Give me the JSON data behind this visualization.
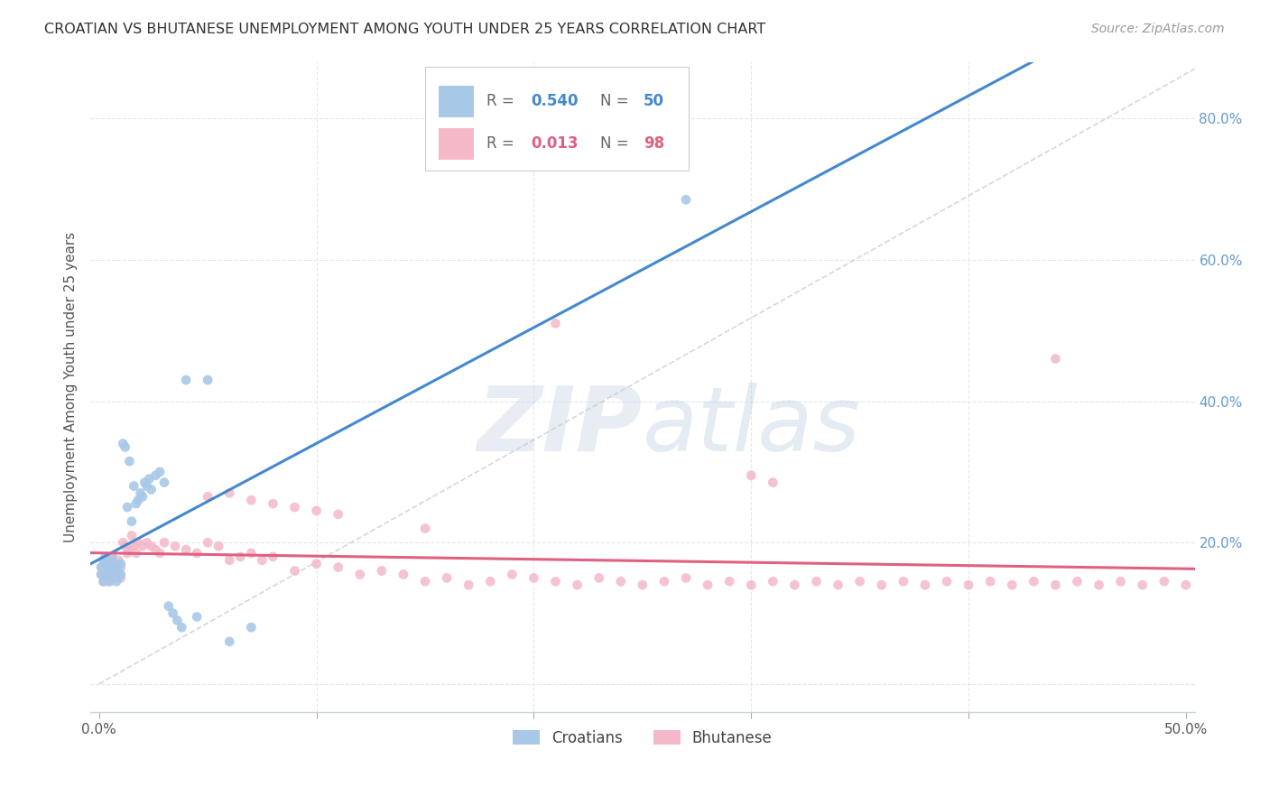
{
  "title": "CROATIAN VS BHUTANESE UNEMPLOYMENT AMONG YOUTH UNDER 25 YEARS CORRELATION CHART",
  "source": "Source: ZipAtlas.com",
  "ylabel": "Unemployment Among Youth under 25 years",
  "xlim": [
    -0.004,
    0.504
  ],
  "ylim": [
    -0.04,
    0.88
  ],
  "x_ticks": [
    0.0,
    0.1,
    0.2,
    0.3,
    0.4,
    0.5
  ],
  "x_tick_labels": [
    "0.0%",
    "",
    "",
    "",
    "",
    "50.0%"
  ],
  "y_ticks": [
    0.0,
    0.2,
    0.4,
    0.6,
    0.8
  ],
  "y_tick_labels_right": [
    "",
    "20.0%",
    "40.0%",
    "60.0%",
    "80.0%"
  ],
  "croatians_R": 0.54,
  "croatians_N": 50,
  "bhutanese_R": 0.013,
  "bhutanese_N": 98,
  "croatians_color": "#a8c8e8",
  "bhutanese_color": "#f4b8c8",
  "croatians_line_color": "#4488cc",
  "bhutanese_line_color": "#e06080",
  "diagonal_line_color": "#c0c8d0",
  "background_color": "#ffffff",
  "grid_color": "#dde5ee",
  "watermark": "ZIPatlas",
  "croatians_x": [
    0.001,
    0.001,
    0.002,
    0.002,
    0.002,
    0.003,
    0.003,
    0.003,
    0.004,
    0.004,
    0.005,
    0.005,
    0.006,
    0.006,
    0.006,
    0.007,
    0.007,
    0.008,
    0.008,
    0.009,
    0.009,
    0.01,
    0.01,
    0.011,
    0.012,
    0.013,
    0.014,
    0.015,
    0.016,
    0.017,
    0.018,
    0.019,
    0.02,
    0.021,
    0.022,
    0.023,
    0.024,
    0.026,
    0.028,
    0.03,
    0.032,
    0.034,
    0.036,
    0.038,
    0.04,
    0.045,
    0.05,
    0.06,
    0.07,
    0.27
  ],
  "croatians_y": [
    0.155,
    0.165,
    0.145,
    0.16,
    0.175,
    0.15,
    0.165,
    0.18,
    0.155,
    0.17,
    0.145,
    0.16,
    0.15,
    0.165,
    0.18,
    0.155,
    0.17,
    0.145,
    0.165,
    0.15,
    0.16,
    0.155,
    0.17,
    0.34,
    0.335,
    0.25,
    0.315,
    0.23,
    0.28,
    0.255,
    0.26,
    0.27,
    0.265,
    0.285,
    0.28,
    0.29,
    0.275,
    0.295,
    0.3,
    0.285,
    0.11,
    0.1,
    0.09,
    0.08,
    0.43,
    0.095,
    0.43,
    0.06,
    0.08,
    0.685
  ],
  "bhutanese_x": [
    0.001,
    0.001,
    0.002,
    0.002,
    0.003,
    0.003,
    0.004,
    0.004,
    0.005,
    0.005,
    0.006,
    0.006,
    0.007,
    0.007,
    0.008,
    0.008,
    0.009,
    0.009,
    0.01,
    0.01,
    0.011,
    0.012,
    0.013,
    0.014,
    0.015,
    0.016,
    0.017,
    0.018,
    0.02,
    0.022,
    0.024,
    0.026,
    0.028,
    0.03,
    0.035,
    0.04,
    0.045,
    0.05,
    0.055,
    0.06,
    0.065,
    0.07,
    0.075,
    0.08,
    0.09,
    0.1,
    0.11,
    0.12,
    0.13,
    0.14,
    0.15,
    0.16,
    0.17,
    0.18,
    0.19,
    0.2,
    0.21,
    0.22,
    0.23,
    0.24,
    0.25,
    0.26,
    0.27,
    0.28,
    0.29,
    0.3,
    0.31,
    0.32,
    0.33,
    0.34,
    0.35,
    0.36,
    0.37,
    0.38,
    0.39,
    0.4,
    0.41,
    0.42,
    0.43,
    0.44,
    0.45,
    0.46,
    0.47,
    0.48,
    0.49,
    0.5,
    0.21,
    0.44,
    0.31,
    0.3,
    0.05,
    0.06,
    0.07,
    0.08,
    0.09,
    0.1,
    0.11,
    0.15
  ],
  "bhutanese_y": [
    0.155,
    0.165,
    0.145,
    0.16,
    0.155,
    0.17,
    0.145,
    0.165,
    0.15,
    0.16,
    0.165,
    0.175,
    0.15,
    0.165,
    0.155,
    0.17,
    0.16,
    0.175,
    0.15,
    0.165,
    0.2,
    0.195,
    0.185,
    0.19,
    0.21,
    0.195,
    0.185,
    0.2,
    0.195,
    0.2,
    0.195,
    0.19,
    0.185,
    0.2,
    0.195,
    0.19,
    0.185,
    0.2,
    0.195,
    0.175,
    0.18,
    0.185,
    0.175,
    0.18,
    0.16,
    0.17,
    0.165,
    0.155,
    0.16,
    0.155,
    0.145,
    0.15,
    0.14,
    0.145,
    0.155,
    0.15,
    0.145,
    0.14,
    0.15,
    0.145,
    0.14,
    0.145,
    0.15,
    0.14,
    0.145,
    0.14,
    0.145,
    0.14,
    0.145,
    0.14,
    0.145,
    0.14,
    0.145,
    0.14,
    0.145,
    0.14,
    0.145,
    0.14,
    0.145,
    0.14,
    0.145,
    0.14,
    0.145,
    0.14,
    0.145,
    0.14,
    0.51,
    0.46,
    0.285,
    0.295,
    0.265,
    0.27,
    0.26,
    0.255,
    0.25,
    0.245,
    0.24,
    0.22
  ]
}
